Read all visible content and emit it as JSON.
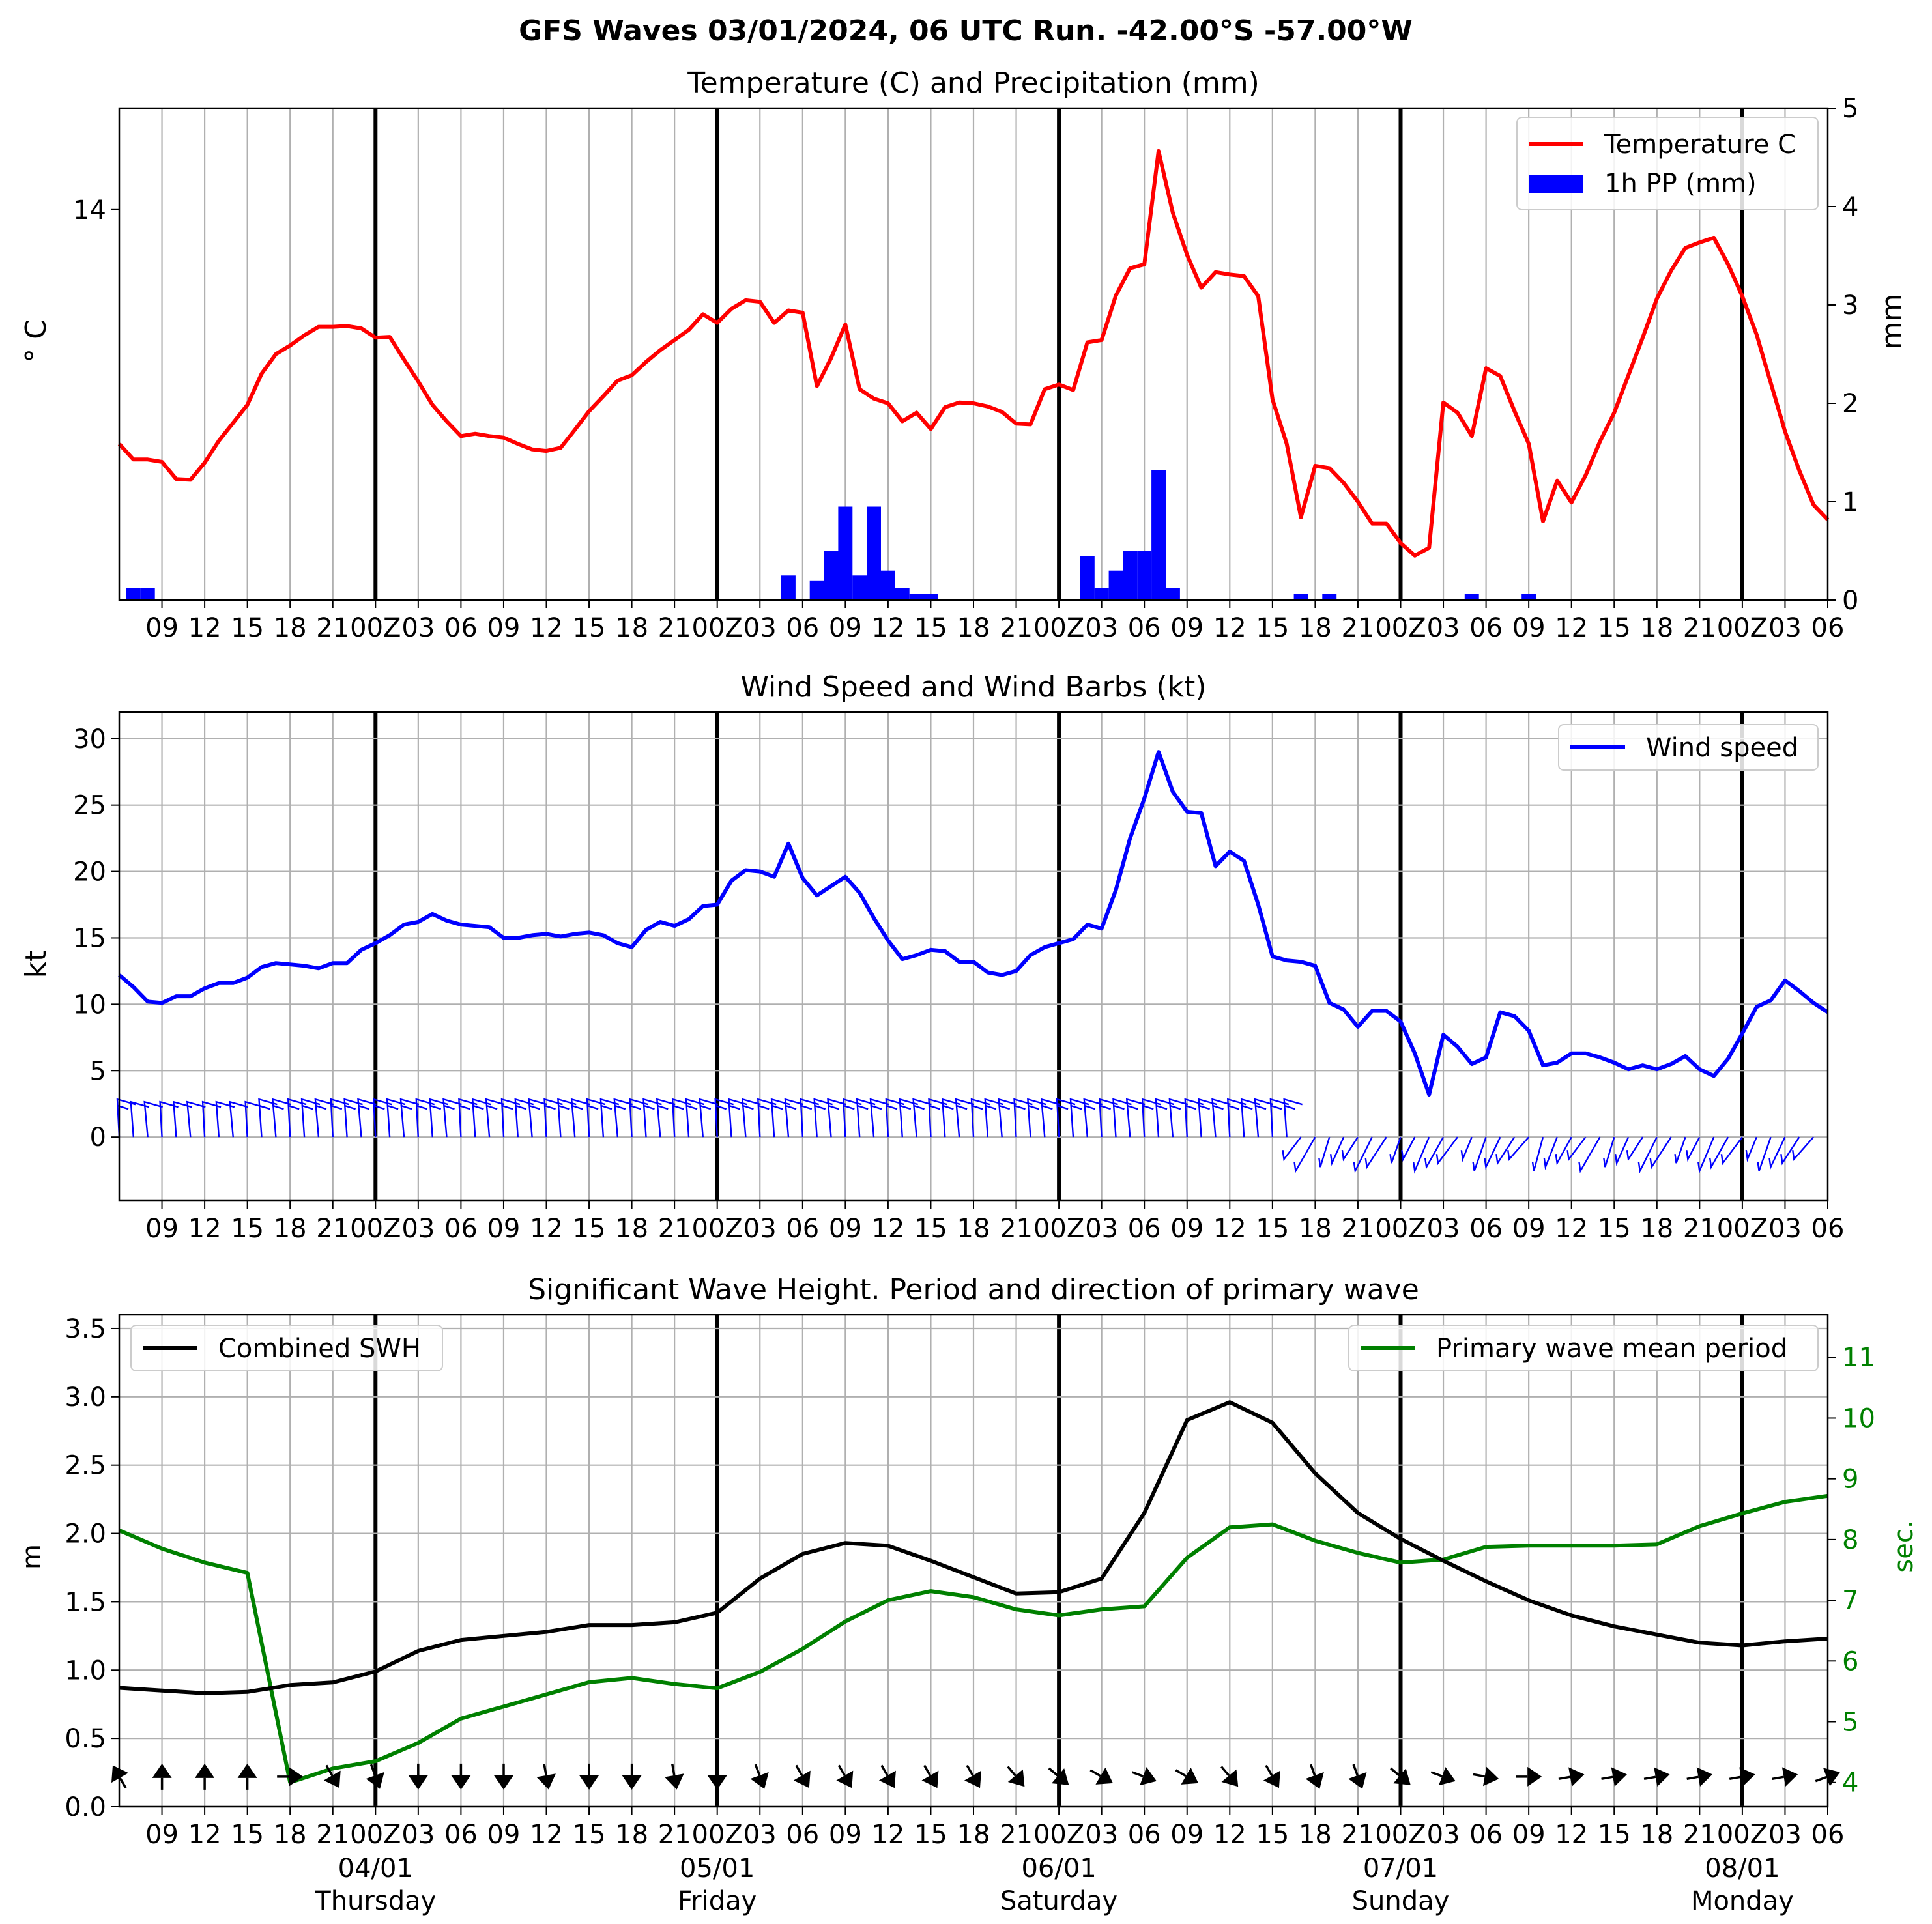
{
  "figure": {
    "suptitle": "GFS Waves 03/01/2024, 06 UTC Run. -42.00°S -57.00°W"
  },
  "time_axis": {
    "tick_labels": [
      "09",
      "12",
      "15",
      "18",
      "21",
      "00Z",
      "03",
      "06",
      "09",
      "12",
      "15",
      "18",
      "21",
      "00Z",
      "03",
      "06",
      "09",
      "12",
      "15",
      "18",
      "21",
      "00Z",
      "03",
      "06",
      "09",
      "12",
      "15",
      "18",
      "21",
      "00Z",
      "03",
      "06",
      "09",
      "12",
      "15",
      "18",
      "21",
      "00Z",
      "03",
      "06"
    ],
    "day_labels": [
      {
        "date": "04/01",
        "weekday": "Thursday"
      },
      {
        "date": "05/01",
        "weekday": "Friday"
      },
      {
        "date": "06/01",
        "weekday": "Saturday"
      },
      {
        "date": "07/01",
        "weekday": "Sunday"
      },
      {
        "date": "08/01",
        "weekday": "Monday"
      }
    ]
  },
  "chart_data": [
    {
      "type": "line",
      "title": "Temperature (C) and Precipitation (mm)",
      "x_unit": "hours after 03/01 06 UTC",
      "xlim": [
        6,
        126
      ],
      "ylabel": "° C",
      "ylabel2": "mm",
      "y_ticks": [
        14
      ],
      "ylim": [
        9.0,
        15.3
      ],
      "y2_ticks": [
        0,
        1,
        2,
        3,
        4,
        5
      ],
      "y2lim": [
        0,
        5
      ],
      "grid": true,
      "legend": {
        "position": "upper right",
        "entries": [
          "Temperature C",
          "1h PP (mm)"
        ]
      },
      "series": [
        {
          "name": "Temperature C",
          "color": "#ff0000",
          "axis": "left",
          "step": 1,
          "x0": 6,
          "values": [
            11.0,
            10.8,
            10.8,
            10.77,
            10.55,
            10.54,
            10.76,
            11.04,
            11.27,
            11.5,
            11.9,
            12.15,
            12.26,
            12.39,
            12.5,
            12.5,
            12.51,
            12.48,
            12.36,
            12.37,
            12.08,
            11.8,
            11.5,
            11.29,
            11.1,
            11.13,
            11.1,
            11.08,
            11.0,
            10.93,
            10.91,
            10.95,
            11.18,
            11.42,
            11.61,
            11.81,
            11.88,
            12.05,
            12.2,
            12.33,
            12.46,
            12.66,
            12.55,
            12.73,
            12.84,
            12.82,
            12.55,
            12.71,
            12.68,
            11.74,
            12.1,
            12.53,
            11.7,
            11.58,
            11.52,
            11.29,
            11.4,
            11.19,
            11.47,
            11.53,
            11.52,
            11.48,
            11.41,
            11.26,
            11.25,
            11.7,
            11.76,
            11.69,
            12.3,
            12.33,
            12.9,
            13.25,
            13.3,
            14.75,
            13.96,
            13.42,
            13.0,
            13.2,
            13.17,
            13.15,
            12.89,
            11.57,
            11.0,
            10.06,
            10.72,
            10.69,
            10.5,
            10.26,
            9.98,
            9.98,
            9.73,
            9.57,
            9.67,
            11.53,
            11.4,
            11.1,
            11.97,
            11.87,
            11.42,
            11.0,
            10.01,
            10.53,
            10.25,
            10.6,
            11.03,
            11.4,
            11.88,
            12.36,
            12.86,
            13.22,
            13.51,
            13.58,
            13.64,
            13.3,
            12.89,
            12.4,
            11.78,
            11.16,
            10.66,
            10.22,
            10.03
          ]
        },
        {
          "name": "1h PP (mm)",
          "type": "bar",
          "color": "#0000ff",
          "axis": "right",
          "bar_width": 1,
          "bars": [
            {
              "x": 7,
              "value": 0.12
            },
            {
              "x": 8,
              "value": 0.12
            },
            {
              "x": 53,
              "value": 0.25
            },
            {
              "x": 55,
              "value": 0.2
            },
            {
              "x": 56,
              "value": 0.5
            },
            {
              "x": 57,
              "value": 0.95
            },
            {
              "x": 58,
              "value": 0.25
            },
            {
              "x": 59,
              "value": 0.95
            },
            {
              "x": 60,
              "value": 0.3
            },
            {
              "x": 61,
              "value": 0.12
            },
            {
              "x": 62,
              "value": 0.06
            },
            {
              "x": 63,
              "value": 0.06
            },
            {
              "x": 74,
              "value": 0.45
            },
            {
              "x": 75,
              "value": 0.12
            },
            {
              "x": 76,
              "value": 0.3
            },
            {
              "x": 77,
              "value": 0.5
            },
            {
              "x": 78,
              "value": 0.5
            },
            {
              "x": 79,
              "value": 1.32
            },
            {
              "x": 80,
              "value": 0.12
            },
            {
              "x": 89,
              "value": 0.06
            },
            {
              "x": 91,
              "value": 0.06
            },
            {
              "x": 101,
              "value": 0.06
            },
            {
              "x": 105,
              "value": 0.06
            }
          ]
        }
      ]
    },
    {
      "type": "line",
      "title": "Wind Speed and Wind Barbs (kt)",
      "x_unit": "hours after 03/01 06 UTC",
      "xlim": [
        6,
        126
      ],
      "ylabel": "kt",
      "y_ticks": [
        0,
        5,
        10,
        15,
        20,
        25,
        30
      ],
      "ylim": [
        -4.8,
        32.0
      ],
      "grid": true,
      "legend": {
        "position": "upper right",
        "entries": [
          "Wind speed"
        ]
      },
      "series": [
        {
          "name": "Wind speed",
          "color": "#0000ff",
          "step": 1,
          "x0": 6,
          "values": [
            12.2,
            11.3,
            10.2,
            10.1,
            10.6,
            10.6,
            11.2,
            11.6,
            11.6,
            12.0,
            12.8,
            13.1,
            13.0,
            12.9,
            12.7,
            13.1,
            13.1,
            14.1,
            14.6,
            15.2,
            16.0,
            16.2,
            16.8,
            16.3,
            16.0,
            15.9,
            15.8,
            15.0,
            15.0,
            15.2,
            15.3,
            15.1,
            15.3,
            15.4,
            15.2,
            14.6,
            14.3,
            15.6,
            16.2,
            15.9,
            16.4,
            17.4,
            17.5,
            19.3,
            20.1,
            20.0,
            19.6,
            22.1,
            19.5,
            18.2,
            18.9,
            19.6,
            18.4,
            16.5,
            14.8,
            13.4,
            13.7,
            14.1,
            14.0,
            13.2,
            13.2,
            12.4,
            12.2,
            12.5,
            13.7,
            14.3,
            14.6,
            14.9,
            16.0,
            15.7,
            18.6,
            22.5,
            25.5,
            29.0,
            26.0,
            24.5,
            24.4,
            20.4,
            21.5,
            20.8,
            17.5,
            13.6,
            13.3,
            13.2,
            12.9,
            10.1,
            9.6,
            8.3,
            9.5,
            9.5,
            8.7,
            6.3,
            3.2,
            7.7,
            6.8,
            5.5,
            6.0,
            9.4,
            9.1,
            8.0,
            5.4,
            5.6,
            6.3,
            6.3,
            6.0,
            5.6,
            5.1,
            5.4,
            5.1,
            5.5,
            6.1,
            5.1,
            4.6,
            5.9,
            7.8,
            9.8,
            10.3,
            11.8,
            11.0,
            10.1,
            9.4
          ]
        }
      ],
      "barbs": {
        "step": 1,
        "x0": 6,
        "count": 120,
        "color": "#0000ff",
        "regimes": [
          {
            "from_hour": 6,
            "to_hour": 88,
            "direction": "N"
          },
          {
            "from_hour": 89,
            "to_hour": 126,
            "direction": "S"
          }
        ]
      }
    },
    {
      "type": "line",
      "title": "Significant Wave Height. Period and direction of primary wave",
      "x_unit": "hours after 03/01 06 UTC",
      "xlim": [
        6,
        126
      ],
      "ylabel": "m",
      "ylabel2": "sec.",
      "y_ticks": [
        0.0,
        0.5,
        1.0,
        1.5,
        2.0,
        2.5,
        3.0,
        3.5
      ],
      "ylim": [
        0,
        3.6
      ],
      "y2_ticks": [
        4,
        5,
        6,
        7,
        8,
        9,
        10,
        11
      ],
      "y2lim": [
        3.6,
        11.7
      ],
      "grid": true,
      "legend": {
        "entries": [
          "Combined SWH",
          "Primary wave mean period"
        ],
        "positions": [
          "upper left",
          "upper right"
        ]
      },
      "series": [
        {
          "name": "Combined SWH",
          "color": "#000000",
          "axis": "left",
          "x": [
            6,
            9,
            12,
            15,
            18,
            21,
            24,
            27,
            30,
            33,
            36,
            39,
            42,
            45,
            48,
            51,
            54,
            57,
            60,
            63,
            66,
            69,
            72,
            75,
            78,
            81,
            84,
            87,
            90,
            93,
            96,
            99,
            102,
            105,
            108,
            111,
            114,
            117,
            120,
            123,
            126
          ],
          "values": [
            0.87,
            0.85,
            0.83,
            0.84,
            0.89,
            0.91,
            0.99,
            1.14,
            1.22,
            1.25,
            1.28,
            1.33,
            1.33,
            1.35,
            1.42,
            1.67,
            1.85,
            1.93,
            1.91,
            1.8,
            1.68,
            1.56,
            1.57,
            1.67,
            2.15,
            2.83,
            2.96,
            2.81,
            2.44,
            2.15,
            1.96,
            1.8,
            1.65,
            1.51,
            1.4,
            1.32,
            1.26,
            1.2,
            1.18,
            1.21,
            1.23
          ]
        },
        {
          "name": "Primary wave mean period",
          "color": "#008000",
          "axis": "right",
          "x": [
            6,
            9,
            12,
            15,
            18,
            21,
            24,
            27,
            30,
            33,
            36,
            39,
            42,
            45,
            48,
            51,
            54,
            57,
            60,
            63,
            66,
            69,
            72,
            75,
            78,
            81,
            84,
            87,
            90,
            93,
            96,
            99,
            102,
            105,
            108,
            111,
            114,
            117,
            120,
            123,
            126
          ],
          "values": [
            8.15,
            7.85,
            7.62,
            7.45,
            4.0,
            4.23,
            4.35,
            4.65,
            5.05,
            5.25,
            5.45,
            5.65,
            5.72,
            5.62,
            5.55,
            5.82,
            6.2,
            6.65,
            7.0,
            7.15,
            7.05,
            6.85,
            6.75,
            6.85,
            6.9,
            7.7,
            8.2,
            8.25,
            7.98,
            7.78,
            7.62,
            7.67,
            7.88,
            7.9,
            7.9,
            7.9,
            7.92,
            8.22,
            8.43,
            8.62,
            8.72
          ]
        }
      ],
      "direction_arrows": {
        "color": "#000000",
        "x": [
          6,
          9,
          12,
          15,
          18,
          21,
          24,
          27,
          30,
          33,
          36,
          39,
          42,
          45,
          48,
          51,
          54,
          57,
          60,
          63,
          66,
          69,
          72,
          75,
          78,
          81,
          84,
          87,
          90,
          93,
          96,
          99,
          102,
          105,
          108,
          111,
          114,
          117,
          120,
          123,
          126
        ],
        "toward_deg": [
          330,
          0,
          0,
          0,
          90,
          150,
          160,
          180,
          180,
          180,
          170,
          180,
          180,
          170,
          180,
          160,
          150,
          150,
          150,
          150,
          150,
          140,
          130,
          120,
          110,
          120,
          140,
          150,
          160,
          160,
          130,
          110,
          100,
          90,
          80,
          80,
          80,
          80,
          80,
          80,
          70
        ]
      }
    }
  ]
}
